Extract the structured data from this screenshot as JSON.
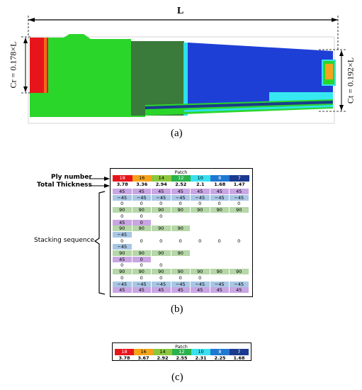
{
  "panel_a": {
    "length_label": "L",
    "root_chord_label": "Cr = 0.178×L",
    "tip_chord_label": "Ct = 0.192×L",
    "caption": "(a)"
  },
  "panel_b": {
    "ply_number_label": "Ply number",
    "total_thickness_label": "Total Thickness",
    "stacking_label": "Stacking sequence",
    "patch_title": "Patch",
    "ply_numbers": [
      "18",
      "16",
      "14",
      "12",
      "10",
      "8",
      "7"
    ],
    "thicknesses": [
      "3.78",
      "3.36",
      "2.94",
      "2.52",
      "2.1",
      "1.68",
      "1.47"
    ],
    "caption": "(b)",
    "rows": [
      {
        "values": [
          "45",
          "45",
          "45",
          "45",
          "45",
          "45",
          "45"
        ],
        "color": "#c9a6e3"
      },
      {
        "values": [
          "−45",
          "−45",
          "−45",
          "−45",
          "−45",
          "−45",
          "−45"
        ],
        "color": "#a9c7e4"
      },
      {
        "values": [
          "0",
          "0",
          "0",
          "0",
          "0",
          "0",
          "0"
        ],
        "color": "#ffffff"
      },
      {
        "values": [
          "90",
          "90",
          "90",
          "90",
          "90",
          "90",
          "90"
        ],
        "color": "#b6d7a8"
      },
      {
        "values": [
          "0",
          "0",
          "0"
        ],
        "color": "#ffffff"
      },
      {
        "values": [
          "45",
          "0"
        ],
        "color": "#c9a6e3"
      },
      {
        "values": [
          "90",
          "90",
          "90",
          "90"
        ],
        "color": "#b6d7a8"
      },
      {
        "values": [
          "−45"
        ],
        "color": "#a9c7e4"
      },
      {
        "values": [
          "0",
          "0",
          "0",
          "0",
          "0",
          "0",
          "0"
        ],
        "color": "#ffffff"
      },
      {
        "values": [
          "−45"
        ],
        "color": "#a9c7e4"
      },
      {
        "values": [
          "90",
          "90",
          "90",
          "90"
        ],
        "color": "#b6d7a8"
      },
      {
        "values": [
          "45",
          "0"
        ],
        "color": "#c9a6e3"
      },
      {
        "values": [
          "0",
          "0",
          "0"
        ],
        "color": "#ffffff"
      },
      {
        "values": [
          "90",
          "90",
          "90",
          "90",
          "90",
          "90",
          "90"
        ],
        "color": "#b6d7a8"
      },
      {
        "values": [
          "0",
          "0",
          "0",
          "0",
          "0"
        ],
        "color": "#ffffff"
      },
      {
        "values": [
          "−45",
          "−45",
          "−45",
          "−45",
          "−45",
          "−45",
          "−45"
        ],
        "color": "#a9c7e4"
      },
      {
        "values": [
          "45",
          "45",
          "45",
          "45",
          "45",
          "45",
          "45"
        ],
        "color": "#c9a6e3"
      }
    ]
  },
  "panel_c": {
    "patch_title": "Patch",
    "ply_numbers": [
      "18",
      "16",
      "14",
      "12",
      "10",
      "8",
      "7"
    ],
    "thicknesses": [
      "3.78",
      "3.67",
      "2.92",
      "2.55",
      "2.31",
      "2.25",
      "1.68"
    ],
    "caption": "(c)"
  },
  "patch_colors": [
    "#e8141b",
    "#f5a31b",
    "#8cc63f",
    "#2bb24c",
    "#39e0f0",
    "#1f78d1",
    "#1a3a8f"
  ]
}
